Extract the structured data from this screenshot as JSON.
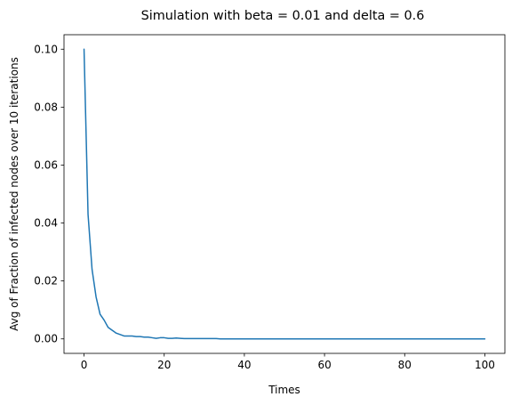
{
  "chart_data": {
    "type": "line",
    "title": "Simulation with beta = 0.01 and delta = 0.6",
    "xlabel": "Times",
    "ylabel": "Avg of Fraction of infected nodes over 10 iterations",
    "xlim": [
      -5,
      105
    ],
    "ylim": [
      -0.005,
      0.105
    ],
    "xticks": [
      0,
      20,
      40,
      60,
      80,
      100
    ],
    "yticks": [
      0.0,
      0.02,
      0.04,
      0.06,
      0.08,
      0.1
    ],
    "xtick_labels": [
      "0",
      "20",
      "40",
      "60",
      "80",
      "100"
    ],
    "ytick_labels": [
      "0.00",
      "0.02",
      "0.04",
      "0.06",
      "0.08",
      "0.10"
    ],
    "grid": false,
    "line_color": "#1f77b4",
    "series": [
      {
        "x": [
          0,
          1,
          2,
          3,
          4,
          5,
          6,
          7,
          8,
          9,
          10,
          11,
          12,
          13,
          14,
          15,
          16,
          17,
          18,
          19,
          20,
          21,
          22,
          23,
          24,
          25,
          26,
          27,
          28,
          29,
          30,
          31,
          32,
          33,
          34,
          35,
          36,
          37,
          38,
          39,
          40,
          41,
          42,
          43,
          44,
          45,
          46,
          47,
          48,
          49,
          50,
          51,
          52,
          53,
          54,
          55,
          56,
          57,
          58,
          59,
          60,
          61,
          62,
          63,
          64,
          65,
          66,
          67,
          68,
          69,
          70,
          71,
          72,
          73,
          74,
          75,
          76,
          77,
          78,
          79,
          80,
          81,
          82,
          83,
          84,
          85,
          86,
          87,
          88,
          89,
          90,
          91,
          92,
          93,
          94,
          95,
          96,
          97,
          98,
          99,
          100
        ],
        "values": [
          0.1,
          0.043,
          0.024,
          0.0145,
          0.0085,
          0.0065,
          0.004,
          0.003,
          0.002,
          0.0015,
          0.001,
          0.001,
          0.001,
          0.0008,
          0.0008,
          0.0006,
          0.0006,
          0.0004,
          0.0002,
          0.0004,
          0.0004,
          0.0002,
          0.0002,
          0.0003,
          0.0002,
          0.0001,
          0.0001,
          0.0001,
          0.0001,
          0.0001,
          0.0001,
          0.0001,
          0.0001,
          0.0001,
          0,
          0,
          0,
          0,
          0,
          0,
          0,
          0,
          0,
          0,
          0,
          0,
          0,
          0,
          0,
          0,
          0,
          0,
          0,
          0,
          0,
          0,
          0,
          0,
          0,
          0,
          0,
          0,
          0,
          0,
          0,
          0,
          0,
          0,
          0,
          0,
          0,
          0,
          0,
          0,
          0,
          0,
          0,
          0,
          0,
          0,
          0,
          0,
          0,
          0,
          0,
          0,
          0,
          0,
          0,
          0,
          0,
          0,
          0,
          0,
          0,
          0,
          0,
          0,
          0,
          0,
          0
        ]
      }
    ]
  }
}
